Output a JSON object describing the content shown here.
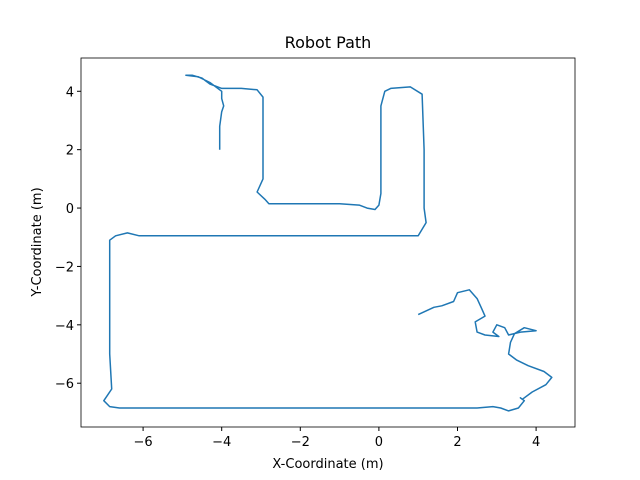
{
  "chart_data": {
    "type": "line",
    "title": "Robot Path",
    "x_label": "X-Coordinate (m)",
    "y_label": "Y-Coordinate (m)",
    "series": [
      {
        "color": "#1f77b4",
        "x": [
          -4.05,
          -4.05,
          -4.0,
          -3.95,
          -4.0,
          -4.0,
          -4.3,
          -4.6,
          -4.91,
          -4.75,
          -4.5,
          -4.3,
          -4.0,
          -3.5,
          -3.1,
          -2.95,
          -2.95,
          -2.95,
          -3.1,
          -2.9,
          -2.8,
          -2.0,
          -1.0,
          -0.5,
          -0.3,
          -0.1,
          0.0,
          0.05,
          0.05,
          0.05,
          0.15,
          0.3,
          0.8,
          1.1,
          1.15,
          1.15,
          1.2,
          1.0,
          0.0,
          -2.0,
          -4.0,
          -5.5,
          -6.1,
          -6.4,
          -6.7,
          -6.85,
          -6.85,
          -6.85,
          -6.8,
          -6.9,
          -7.0,
          -6.85,
          -6.6,
          -4.0,
          -2.0,
          0.0,
          1.0,
          2.0,
          2.5,
          2.9,
          3.1,
          3.3,
          3.55,
          3.7,
          3.6,
          3.65,
          3.9,
          4.25,
          4.4,
          4.2,
          3.8,
          3.5,
          3.3,
          3.35,
          3.45,
          3.7,
          4.0,
          3.6,
          3.3,
          3.2,
          3.0,
          2.9,
          3.05,
          2.7,
          2.5,
          2.45,
          2.7,
          2.6,
          2.5,
          2.3,
          2.0,
          1.9,
          1.6,
          1.4,
          1.0
        ],
        "y": [
          2.0,
          2.8,
          3.3,
          3.5,
          3.75,
          4.0,
          4.3,
          4.5,
          4.55,
          4.55,
          4.45,
          4.25,
          4.1,
          4.1,
          4.05,
          3.8,
          2.5,
          1.0,
          0.55,
          0.3,
          0.15,
          0.15,
          0.15,
          0.1,
          0.0,
          -0.05,
          0.1,
          0.5,
          2.5,
          3.5,
          4.0,
          4.1,
          4.15,
          3.9,
          2.0,
          0.0,
          -0.5,
          -0.95,
          -0.95,
          -0.95,
          -0.95,
          -0.95,
          -0.95,
          -0.85,
          -0.95,
          -1.1,
          -3.0,
          -5.0,
          -6.2,
          -6.4,
          -6.6,
          -6.8,
          -6.85,
          -6.85,
          -6.85,
          -6.85,
          -6.85,
          -6.85,
          -6.85,
          -6.8,
          -6.85,
          -6.95,
          -6.85,
          -6.6,
          -6.5,
          -6.55,
          -6.3,
          -6.05,
          -5.8,
          -5.6,
          -5.4,
          -5.2,
          -5.0,
          -4.6,
          -4.3,
          -4.1,
          -4.2,
          -4.25,
          -4.35,
          -4.1,
          -4.0,
          -4.25,
          -4.4,
          -4.35,
          -4.25,
          -3.9,
          -3.7,
          -3.4,
          -3.1,
          -2.8,
          -2.9,
          -3.2,
          -3.35,
          -3.4,
          -3.65
        ]
      }
    ],
    "xlim": [
      -7.58,
      4.99
    ],
    "ylim": [
      -7.5,
      5.14
    ],
    "xticks": [
      {
        "value": -6,
        "label": "−6"
      },
      {
        "value": -4,
        "label": "−4"
      },
      {
        "value": -2,
        "label": "−2"
      },
      0,
      2,
      4
    ],
    "yticks": [
      {
        "value": -6,
        "label": "−6"
      },
      {
        "value": -4,
        "label": "−4"
      },
      {
        "value": -2,
        "label": "−2"
      },
      0,
      2,
      4
    ]
  }
}
